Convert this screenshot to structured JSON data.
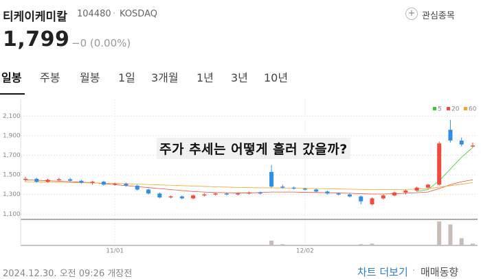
{
  "header": {
    "name": "티케이케미칼",
    "code": "104480",
    "separator": "·",
    "market": "KOSDAQ",
    "favorite_icon": "+",
    "favorite": "관심종목",
    "price": "1,799",
    "change": "−0 (0.00%)"
  },
  "tabs": [
    "일봉",
    "주봉",
    "월봉",
    "1일",
    "3개월",
    "1년",
    "3년",
    "10년"
  ],
  "overlay_text": "주가 추세는 어떻게 흘러 갔을까?",
  "footer": {
    "time": "2024.12.30. 오전 09:26 개장전",
    "more": "차트 더보기",
    "separator": "·",
    "trade": "매매동향"
  },
  "chart_data": {
    "type": "candlestick",
    "categories": [
      null,
      null,
      null,
      null,
      null,
      null,
      null,
      null,
      "11/01",
      null,
      null,
      null,
      null,
      null,
      null,
      null,
      null,
      null,
      null,
      null,
      null,
      null,
      null,
      null,
      null,
      "12/02",
      null,
      null,
      null,
      null,
      null,
      null,
      null,
      null,
      null,
      null,
      null,
      null,
      null,
      null,
      null
    ],
    "open": [
      1450,
      1460,
      1430,
      1450,
      1455,
      1440,
      1420,
      1430,
      1400,
      1410,
      1390,
      1350,
      1310,
      1270,
      1280,
      1260,
      1290,
      1300,
      1310,
      1300,
      1310,
      1320,
      1530,
      1380,
      1370,
      1360,
      1350,
      1330,
      1310,
      1300,
      1280,
      1200,
      1260,
      1290,
      1320,
      1340,
      1370,
      1400,
      1960,
      1850,
      1790
    ],
    "high": [
      1480,
      1470,
      1460,
      1470,
      1470,
      1450,
      1440,
      1440,
      1420,
      1420,
      1400,
      1360,
      1320,
      1290,
      1290,
      1300,
      1310,
      1320,
      1320,
      1320,
      1330,
      1330,
      1600,
      1400,
      1380,
      1370,
      1360,
      1340,
      1320,
      1310,
      1290,
      1270,
      1300,
      1330,
      1350,
      1380,
      1410,
      1840,
      2060,
      1880,
      1830
    ],
    "low": [
      1430,
      1420,
      1420,
      1440,
      1430,
      1410,
      1400,
      1390,
      1390,
      1380,
      1340,
      1300,
      1260,
      1260,
      1250,
      1250,
      1280,
      1290,
      1290,
      1290,
      1300,
      1300,
      1370,
      1360,
      1350,
      1340,
      1320,
      1300,
      1290,
      1270,
      1200,
      1190,
      1250,
      1280,
      1300,
      1330,
      1360,
      1390,
      1830,
      1790,
      1780
    ],
    "close": [
      1460,
      1430,
      1450,
      1455,
      1440,
      1420,
      1430,
      1400,
      1410,
      1390,
      1350,
      1310,
      1270,
      1280,
      1260,
      1290,
      1300,
      1310,
      1300,
      1310,
      1320,
      1310,
      1380,
      1370,
      1360,
      1350,
      1330,
      1310,
      1300,
      1280,
      1230,
      1260,
      1290,
      1320,
      1340,
      1370,
      1400,
      1820,
      1850,
      1810,
      1799
    ],
    "volume": [
      1,
      1,
      1,
      1,
      1,
      1,
      1,
      1,
      1,
      1,
      1,
      1,
      1,
      1,
      1,
      1,
      1,
      1,
      1,
      1,
      1,
      1,
      8,
      2,
      1,
      1,
      1,
      1,
      1,
      1,
      2,
      3,
      1,
      1,
      1,
      1,
      1,
      40,
      35,
      12,
      3
    ],
    "up_color": "#f04b3c",
    "down_color": "#2f8fe6",
    "volume_color": "#c8bcb6",
    "moving_averages": [
      {
        "name": "5",
        "color": "#33cc33",
        "values": [
          null,
          null,
          null,
          null,
          null,
          null,
          null,
          null,
          null,
          null,
          null,
          null,
          null,
          null,
          null,
          null,
          null,
          null,
          null,
          null,
          null,
          null,
          null,
          null,
          null,
          null,
          null,
          null,
          null,
          null,
          null,
          null,
          null,
          null,
          null,
          1330,
          1350,
          1440,
          1560,
          1680,
          1780
        ]
      },
      {
        "name": "20",
        "color": "#f04b3c",
        "values": [
          1450,
          1445,
          1440,
          1435,
          1430,
          1425,
          1420,
          1410,
          1400,
          1390,
          1380,
          1370,
          1360,
          1350,
          1340,
          1330,
          1325,
          1320,
          1318,
          1315,
          1315,
          1320,
          1325,
          1325,
          1325,
          1322,
          1320,
          1318,
          1315,
          1312,
          1308,
          1305,
          1305,
          1308,
          1312,
          1318,
          1325,
          1360,
          1400,
          1430,
          1450
        ]
      },
      {
        "name": "60",
        "color": "#f5a623",
        "values": [
          1430,
          1428,
          1426,
          1424,
          1422,
          1420,
          1418,
          1415,
          1412,
          1410,
          1406,
          1402,
          1398,
          1394,
          1390,
          1386,
          1382,
          1378,
          1375,
          1372,
          1370,
          1368,
          1368,
          1366,
          1364,
          1362,
          1360,
          1358,
          1356,
          1354,
          1352,
          1350,
          1350,
          1350,
          1352,
          1355,
          1358,
          1375,
          1390,
          1405,
          1420
        ]
      }
    ],
    "ylim": [
      1060,
      2200
    ],
    "yticks": [
      {
        "value": 1100,
        "label": "1,100"
      },
      {
        "value": 1300,
        "label": "1,300"
      },
      {
        "value": 1500,
        "label": "1,500"
      },
      {
        "value": 1700,
        "label": "1,700"
      },
      {
        "value": 1900,
        "label": "1,900"
      },
      {
        "value": 2100,
        "label": "2,100"
      }
    ],
    "grid": true
  }
}
